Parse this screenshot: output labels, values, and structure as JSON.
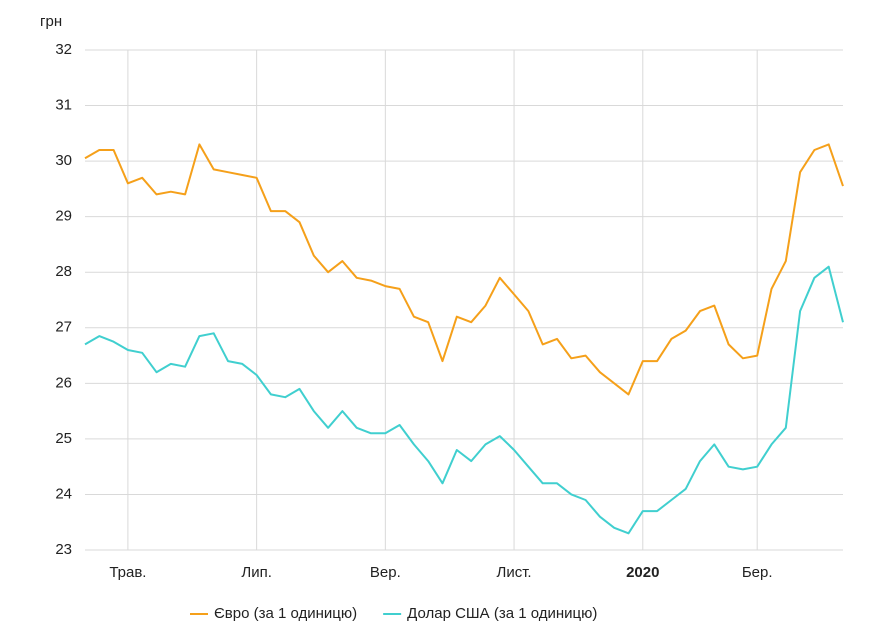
{
  "chart_data": {
    "type": "line",
    "y_label": "грн",
    "categories": [
      null,
      null,
      null,
      "Трав.",
      null,
      null,
      null,
      null,
      null,
      null,
      null,
      null,
      "Лип.",
      null,
      null,
      null,
      null,
      null,
      null,
      null,
      null,
      "Вер.",
      null,
      null,
      null,
      null,
      null,
      null,
      null,
      null,
      "Лист.",
      null,
      null,
      null,
      null,
      null,
      null,
      null,
      null,
      "2020",
      null,
      null,
      null,
      null,
      null,
      null,
      null,
      "Бер.",
      null,
      null,
      null,
      null,
      null,
      null
    ],
    "series": [
      {
        "name": "Євро (за 1 одиницю)",
        "color": "#f5a01a",
        "values": [
          30.05,
          30.2,
          30.2,
          29.6,
          29.7,
          29.4,
          29.45,
          29.4,
          30.3,
          29.85,
          29.8,
          29.75,
          29.7,
          29.1,
          29.1,
          28.9,
          28.3,
          28.0,
          28.2,
          27.9,
          27.85,
          27.75,
          27.7,
          27.2,
          27.1,
          26.4,
          27.2,
          27.1,
          27.4,
          27.9,
          27.6,
          27.3,
          26.7,
          26.8,
          26.45,
          26.5,
          26.2,
          26.0,
          25.8,
          26.4,
          26.4,
          26.8,
          26.95,
          27.3,
          27.4,
          26.7,
          26.45,
          26.5,
          27.7,
          28.2,
          29.8,
          30.2,
          30.3,
          29.55
        ]
      },
      {
        "name": "Долар США (за 1 одиницю)",
        "color": "#40cfcf",
        "values": [
          26.7,
          26.85,
          26.75,
          26.6,
          26.55,
          26.2,
          26.35,
          26.3,
          26.85,
          26.9,
          26.4,
          26.35,
          26.15,
          25.8,
          25.75,
          25.9,
          25.5,
          25.2,
          25.5,
          25.2,
          25.1,
          25.1,
          25.25,
          24.9,
          24.6,
          24.2,
          24.8,
          24.6,
          24.9,
          25.05,
          24.8,
          24.5,
          24.2,
          24.2,
          24.0,
          23.9,
          23.6,
          23.4,
          23.3,
          23.7,
          23.7,
          23.9,
          24.1,
          24.6,
          24.9,
          24.5,
          24.45,
          24.5,
          24.9,
          25.2,
          27.3,
          27.9,
          28.1,
          27.1
        ]
      }
    ],
    "ylim": [
      23,
      32
    ],
    "yticks": [
      23,
      24,
      25,
      26,
      27,
      28,
      29,
      30,
      31,
      32
    ],
    "grid": true
  }
}
